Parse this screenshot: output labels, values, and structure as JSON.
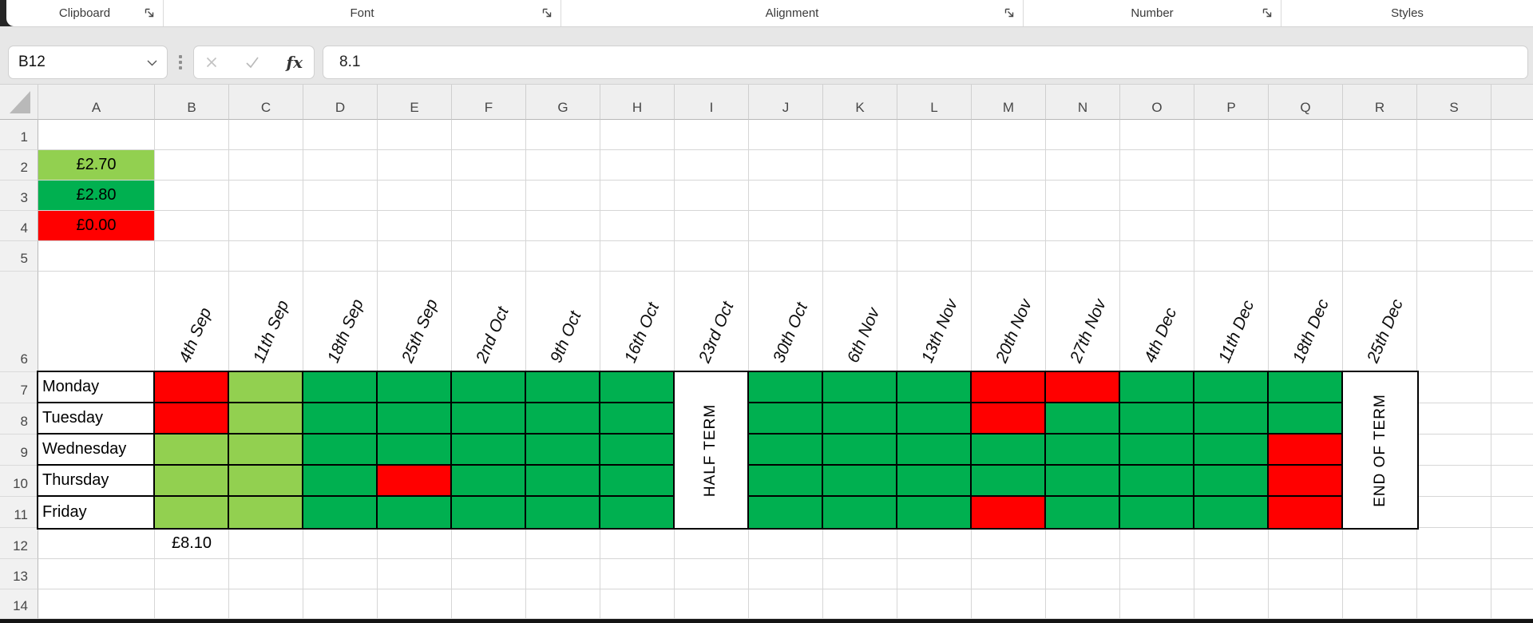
{
  "ribbon": {
    "groups": [
      {
        "label": "Clipboard",
        "has_launcher": true
      },
      {
        "label": "Font",
        "has_launcher": true
      },
      {
        "label": "Alignment",
        "has_launcher": true
      },
      {
        "label": "Number",
        "has_launcher": true
      },
      {
        "label": "Styles",
        "has_launcher": false
      }
    ]
  },
  "formula_bar": {
    "name_box_value": "B12",
    "fx_label": "fx",
    "formula_value": "8.1"
  },
  "sheet": {
    "column_headers": [
      "A",
      "B",
      "C",
      "D",
      "E",
      "F",
      "G",
      "H",
      "I",
      "J",
      "K",
      "L",
      "M",
      "N",
      "O",
      "P",
      "Q",
      "R",
      "S"
    ],
    "row_headers": [
      "1",
      "2",
      "3",
      "4",
      "5",
      "6",
      "7",
      "8",
      "9",
      "10",
      "11",
      "12",
      "13",
      "14"
    ],
    "price_key": [
      {
        "cell": "A2",
        "label": "£2.70",
        "color": "#92D050"
      },
      {
        "cell": "A3",
        "label": "£2.80",
        "color": "#00B050"
      },
      {
        "cell": "A4",
        "label": "£0.00",
        "color": "#FF0000"
      }
    ],
    "weekly_total": {
      "cell": "B12",
      "label": "£8.10"
    },
    "schedule": {
      "dates": [
        "4th Sep",
        "11th Sep",
        "18th Sep",
        "25th Sep",
        "2nd Oct",
        "9th Oct",
        "16th Oct",
        "23rd Oct",
        "30th Oct",
        "6th Nov",
        "13th Nov",
        "20th Nov",
        "27th Nov",
        "4th Dec",
        "11th Dec",
        "18th Dec",
        "25th Dec"
      ],
      "days": [
        "Monday",
        "Tuesday",
        "Wednesday",
        "Thursday",
        "Friday"
      ],
      "legend": {
        "G": "#00B050",
        "L": "#92D050",
        "R": "#FF0000"
      },
      "merged_columns": [
        {
          "index": 7,
          "label": "HALF TERM"
        },
        {
          "index": 16,
          "label": "END OF TERM"
        }
      ],
      "matrix": [
        [
          "R",
          "L",
          "G",
          "G",
          "G",
          "G",
          "G",
          null,
          "G",
          "G",
          "G",
          "R",
          "R",
          "G",
          "G",
          "G",
          null
        ],
        [
          "R",
          "L",
          "G",
          "G",
          "G",
          "G",
          "G",
          null,
          "G",
          "G",
          "G",
          "R",
          "G",
          "G",
          "G",
          "G",
          null
        ],
        [
          "L",
          "L",
          "G",
          "G",
          "G",
          "G",
          "G",
          null,
          "G",
          "G",
          "G",
          "G",
          "G",
          "G",
          "G",
          "R",
          null
        ],
        [
          "L",
          "L",
          "G",
          "R",
          "G",
          "G",
          "G",
          null,
          "G",
          "G",
          "G",
          "G",
          "G",
          "G",
          "G",
          "R",
          null
        ],
        [
          "L",
          "L",
          "G",
          "G",
          "G",
          "G",
          "G",
          null,
          "G",
          "G",
          "G",
          "R",
          "G",
          "G",
          "G",
          "R",
          null
        ]
      ]
    }
  }
}
